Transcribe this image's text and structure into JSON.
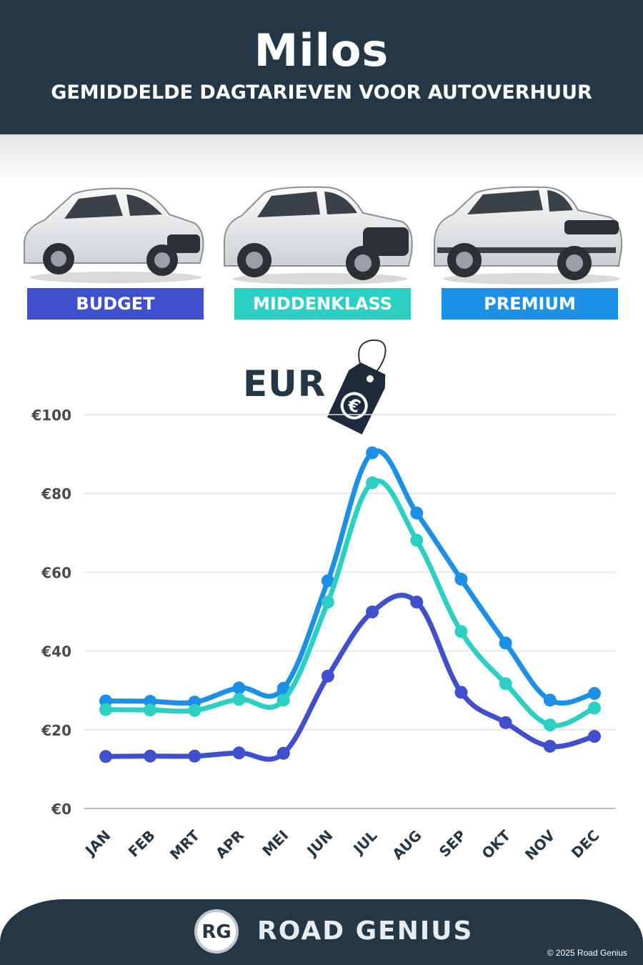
{
  "header": {
    "city": "Milos",
    "subtitle": "GEMIDDELDE DAGTARIEVEN VOOR AUTOVERHUUR"
  },
  "categories": [
    {
      "label": "BUDGET",
      "color": "#3f4fce"
    },
    {
      "label": "MIDDENKLASS",
      "color": "#2ccfc4"
    },
    {
      "label": "PREMIUM",
      "color": "#1c8fe6"
    }
  ],
  "currency_label": "EUR",
  "currency_icon": "euro-price-tag-icon",
  "chart_data": {
    "type": "line",
    "title": "",
    "xlabel": "",
    "ylabel": "",
    "x": [
      "JAN",
      "FEB",
      "MRT",
      "APR",
      "MEI",
      "JUN",
      "JUL",
      "AUG",
      "SEP",
      "OKT",
      "NOV",
      "DEC"
    ],
    "ylim": [
      0,
      100
    ],
    "yticks": [
      0,
      20,
      40,
      60,
      80,
      100
    ],
    "ytick_labels": [
      "€0",
      "€20",
      "€40",
      "€60",
      "€80",
      "€100"
    ],
    "grid": true,
    "series": [
      {
        "name": "PREMIUM",
        "color": "#1c8fe6",
        "values": [
          27.3,
          27.2,
          27.0,
          30.6,
          30.5,
          57.8,
          90.3,
          75.0,
          58.2,
          42.0,
          27.5,
          29.2
        ]
      },
      {
        "name": "MIDDENKLASS",
        "color": "#2ccfc4",
        "values": [
          25.1,
          25.0,
          24.9,
          27.7,
          27.5,
          52.4,
          82.7,
          68.1,
          44.9,
          31.7,
          21.2,
          25.5
        ]
      },
      {
        "name": "BUDGET",
        "color": "#3f4fce",
        "values": [
          13.2,
          13.3,
          13.3,
          14.1,
          14.0,
          33.6,
          49.9,
          52.4,
          29.5,
          21.8,
          15.8,
          18.3
        ]
      }
    ]
  },
  "footer": {
    "logo_text": "RG",
    "brand": "ROAD GENIUS",
    "copyright": "© 2025 Road Genius"
  }
}
